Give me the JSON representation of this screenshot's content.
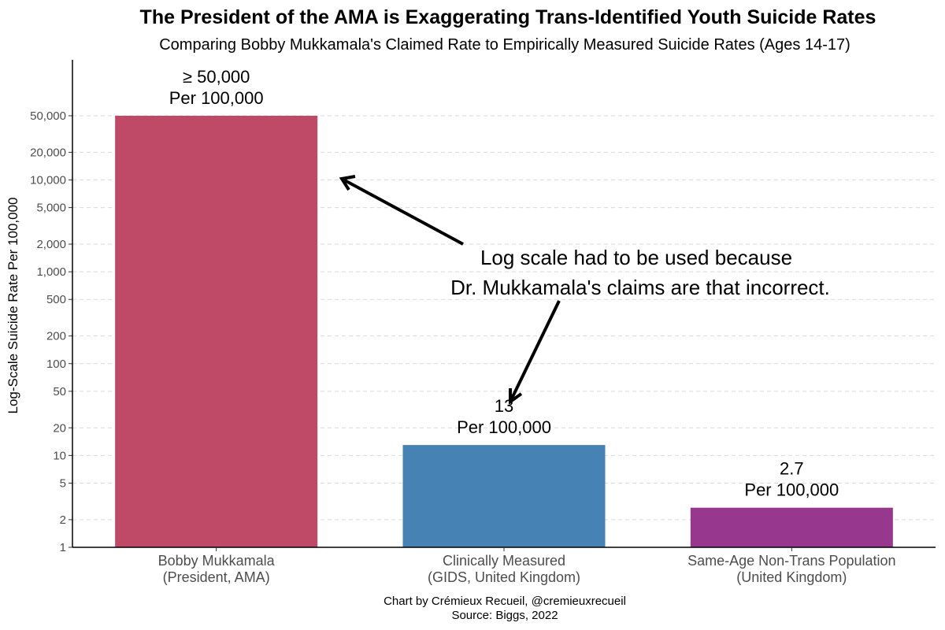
{
  "chart_data": {
    "type": "bar",
    "title": "The President of the AMA is Exaggerating Trans-Identified Youth Suicide Rates",
    "subtitle": "Comparing Bobby Mukkamala's Claimed Rate to Empirically Measured Suicide Rates (Ages 14-17)",
    "ylabel": "Log-Scale Suicide Rate Per 100,000",
    "y_scale": "log",
    "ylim": [
      1,
      50000
    ],
    "grid": "horizontal dashed",
    "y_ticks": [
      1,
      2,
      5,
      10,
      20,
      50,
      100,
      200,
      500,
      1000,
      2000,
      5000,
      10000,
      20000,
      50000
    ],
    "y_tick_labels": [
      "1",
      "2",
      "5",
      "10",
      "20",
      "50",
      "100",
      "200",
      "500",
      "1,000",
      "2,000",
      "5,000",
      "10,000",
      "20,000",
      "50,000"
    ],
    "categories": [
      [
        "Bobby Mukkamala",
        "(President, AMA)"
      ],
      [
        "Clinically Measured",
        "(GIDS, United Kingdom)"
      ],
      [
        "Same-Age Non-Trans Population",
        "(United Kingdom)"
      ]
    ],
    "values": [
      50000,
      13,
      2.7
    ],
    "colors": [
      "#bf4a68",
      "#4682b4",
      "#97388e"
    ],
    "data_labels": [
      [
        "≥ 50,000",
        "Per 100,000"
      ],
      [
        "13",
        "Per 100,000"
      ],
      [
        "2.7",
        "Per 100,000"
      ]
    ],
    "annotation": [
      "Log scale had to be used because",
      "Dr. Mukkamala's claims are that incorrect."
    ],
    "caption": [
      "Chart by Crémieux Recueil, @cremieuxrecueil",
      "Source: Biggs, 2022"
    ]
  }
}
